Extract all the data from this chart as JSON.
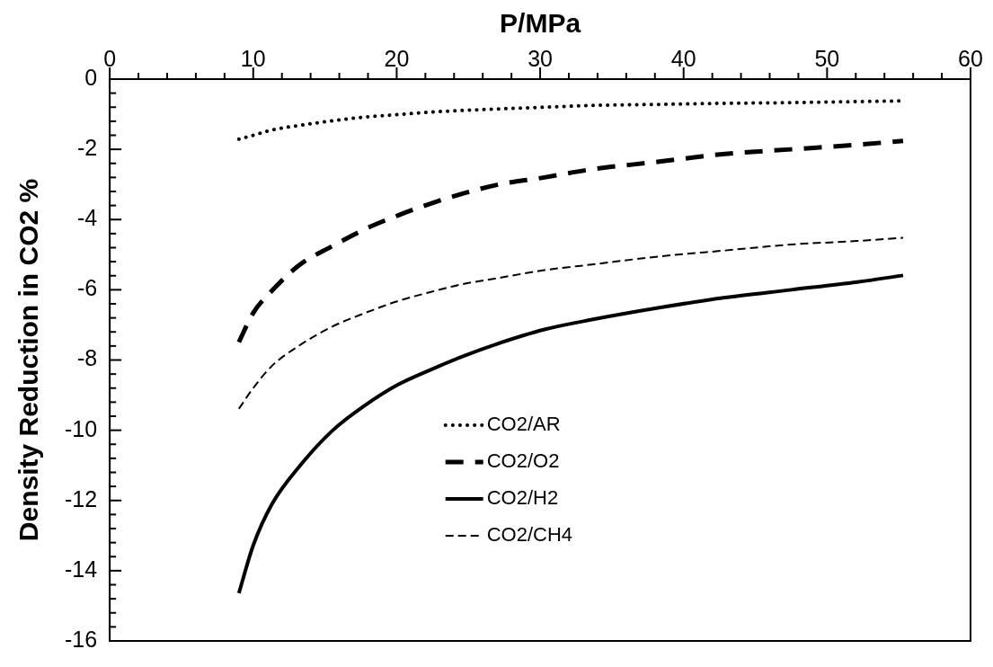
{
  "chart_data": {
    "type": "line",
    "xlabel": "P/MPa",
    "ylabel": "Density Reduction in CO2 %",
    "x": [
      9,
      10,
      11.3,
      13.2,
      15.5,
      17.8,
      20.1,
      22.4,
      24.7,
      27,
      30.3,
      33.6,
      38.3,
      42.9,
      47.5,
      52.1,
      55.3
    ],
    "series": [
      {
        "name": "CO2/AR",
        "color": "#000000",
        "line_style": "dotted",
        "values": [
          -1.71,
          -1.6,
          -1.45,
          -1.32,
          -1.19,
          -1.08,
          -1.01,
          -0.94,
          -0.89,
          -0.85,
          -0.8,
          -0.75,
          -0.72,
          -0.69,
          -0.67,
          -0.64,
          -0.62
        ]
      },
      {
        "name": "CO2/O2",
        "color": "#000000",
        "line_style": "dashed",
        "values": [
          -7.49,
          -6.66,
          -6.03,
          -5.3,
          -4.76,
          -4.27,
          -3.88,
          -3.54,
          -3.25,
          -3.01,
          -2.8,
          -2.57,
          -2.35,
          -2.13,
          -2,
          -1.87,
          -1.76
        ]
      },
      {
        "name": "CO2/H2",
        "color": "#000000",
        "line_style": "solid",
        "values": [
          -14.64,
          -13.28,
          -12.11,
          -11.04,
          -10.02,
          -9.29,
          -8.7,
          -8.27,
          -7.88,
          -7.54,
          -7.13,
          -6.85,
          -6.51,
          -6.22,
          -6,
          -5.78,
          -5.59
        ]
      },
      {
        "name": "CO2/CH4",
        "color": "#000000",
        "line_style": "dashed",
        "values": [
          -9.39,
          -8.8,
          -8.17,
          -7.59,
          -7.05,
          -6.66,
          -6.32,
          -6.06,
          -5.83,
          -5.67,
          -5.44,
          -5.28,
          -5.05,
          -4.88,
          -4.71,
          -4.61,
          -4.52
        ]
      }
    ],
    "xlim": [
      0,
      60
    ],
    "xticks": [
      0,
      {
        "value": 2,
        "label": null
      },
      {
        "value": 4,
        "label": null
      },
      {
        "value": 6,
        "label": null
      },
      {
        "value": 8,
        "label": null
      },
      10,
      {
        "value": 12,
        "label": null
      },
      {
        "value": 14,
        "label": null
      },
      {
        "value": 16,
        "label": null
      },
      {
        "value": 18,
        "label": null
      },
      20,
      {
        "value": 22,
        "label": null
      },
      {
        "value": 24,
        "label": null
      },
      {
        "value": 26,
        "label": null
      },
      {
        "value": 28,
        "label": null
      },
      30,
      {
        "value": 32,
        "label": null
      },
      {
        "value": 34,
        "label": null
      },
      {
        "value": 36,
        "label": null
      },
      {
        "value": 38,
        "label": null
      },
      40,
      {
        "value": 42,
        "label": null
      },
      {
        "value": 44,
        "label": null
      },
      {
        "value": 46,
        "label": null
      },
      {
        "value": 48,
        "label": null
      },
      50,
      {
        "value": 52,
        "label": null
      },
      {
        "value": 54,
        "label": null
      },
      {
        "value": 56,
        "label": null
      },
      {
        "value": 58,
        "label": null
      },
      60
    ],
    "ylim": [
      -16,
      0
    ],
    "yticks": [
      0,
      {
        "value": -0.4,
        "label": null
      },
      {
        "value": -0.8,
        "label": null
      },
      {
        "value": -1.2,
        "label": null
      },
      {
        "value": -1.6,
        "label": null
      },
      -2,
      {
        "value": -2.4,
        "label": null
      },
      {
        "value": -2.8,
        "label": null
      },
      {
        "value": -3.2,
        "label": null
      },
      {
        "value": -3.6,
        "label": null
      },
      -4,
      {
        "value": -4.4,
        "label": null
      },
      {
        "value": -4.8,
        "label": null
      },
      {
        "value": -5.2,
        "label": null
      },
      {
        "value": -5.6,
        "label": null
      },
      -6,
      {
        "value": -6.4,
        "label": null
      },
      {
        "value": -6.8,
        "label": null
      },
      {
        "value": -7.2,
        "label": null
      },
      {
        "value": -7.6,
        "label": null
      },
      -8,
      {
        "value": -8.4,
        "label": null
      },
      {
        "value": -8.8,
        "label": null
      },
      {
        "value": -9.2,
        "label": null
      },
      {
        "value": -9.6,
        "label": null
      },
      -10,
      {
        "value": -10.4,
        "label": null
      },
      {
        "value": -10.8,
        "label": null
      },
      {
        "value": -11.2,
        "label": null
      },
      {
        "value": -11.6,
        "label": null
      },
      -12,
      {
        "value": -12.4,
        "label": null
      },
      {
        "value": -12.8,
        "label": null
      },
      {
        "value": -13.2,
        "label": null
      },
      {
        "value": -13.6,
        "label": null
      },
      -14,
      {
        "value": -14.4,
        "label": null
      },
      {
        "value": -14.8,
        "label": null
      },
      {
        "value": -15.2,
        "label": null
      },
      {
        "value": -15.6,
        "label": null
      },
      -16
    ],
    "grid": false,
    "legend": "bottom",
    "marker": "none"
  }
}
